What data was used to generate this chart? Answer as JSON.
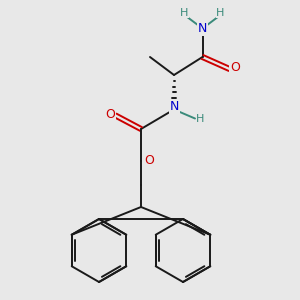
{
  "bg": "#e8e8e8",
  "bc": "#1a1a1a",
  "nc": "#0000cc",
  "oc": "#cc0000",
  "hc": "#3a8a7a",
  "lw": 1.4,
  "xlim": [
    0,
    10
  ],
  "ylim": [
    0,
    10
  ],
  "figsize": [
    3.0,
    3.0
  ],
  "dpi": 100
}
